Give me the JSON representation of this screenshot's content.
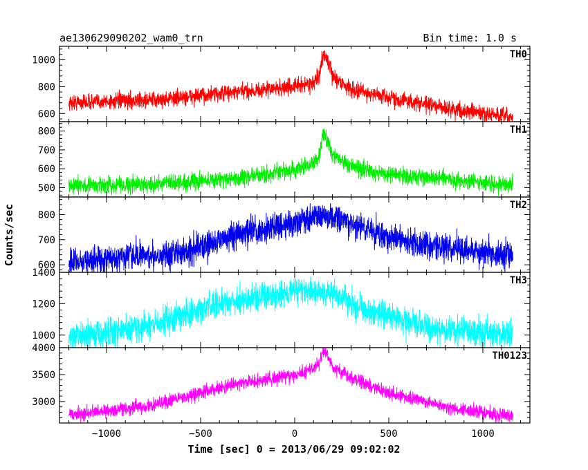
{
  "header": {
    "title": "ae130629090202_wam0_trn",
    "bin_time": "Bin time: 1.0 s"
  },
  "chart_data": {
    "type": "line",
    "xlabel": "Time [sec] 0 = 2013/06/29 09:02:02",
    "ylabel": "Counts/sec",
    "xlim": [
      -1250,
      1250
    ],
    "xticks": [
      -1000,
      -500,
      0,
      500,
      1000
    ],
    "x_range": [
      -1200,
      1160
    ],
    "panels": [
      {
        "name": "TH0",
        "color": "#ff0000",
        "ylim": [
          540,
          1100
        ],
        "yticks": [
          600,
          800,
          1000
        ],
        "profile": [
          [
            -1200,
            680
          ],
          [
            -700,
            705
          ],
          [
            -300,
            760
          ],
          [
            0,
            800
          ],
          [
            100,
            830
          ],
          [
            130,
            870
          ],
          [
            150,
            1040
          ],
          [
            175,
            1000
          ],
          [
            200,
            880
          ],
          [
            300,
            780
          ],
          [
            500,
            720
          ],
          [
            800,
            640
          ],
          [
            1000,
            600
          ],
          [
            1160,
            570
          ]
        ],
        "noise": 30
      },
      {
        "name": "TH1",
        "color": "#00ee00",
        "ylim": [
          450,
          850
        ],
        "yticks": [
          500,
          600,
          700,
          800
        ],
        "profile": [
          [
            -1200,
            510
          ],
          [
            -700,
            520
          ],
          [
            -300,
            550
          ],
          [
            0,
            590
          ],
          [
            100,
            630
          ],
          [
            130,
            670
          ],
          [
            150,
            780
          ],
          [
            175,
            750
          ],
          [
            200,
            680
          ],
          [
            300,
            610
          ],
          [
            500,
            570
          ],
          [
            800,
            545
          ],
          [
            1000,
            525
          ],
          [
            1160,
            515
          ]
        ],
        "noise": 22
      },
      {
        "name": "TH2",
        "color": "#0000ee",
        "ylim": [
          570,
          870
        ],
        "yticks": [
          600,
          700,
          800
        ],
        "profile": [
          [
            -1200,
            610
          ],
          [
            -600,
            650
          ],
          [
            -300,
            720
          ],
          [
            0,
            770
          ],
          [
            150,
            800
          ],
          [
            300,
            760
          ],
          [
            600,
            690
          ],
          [
            1000,
            650
          ],
          [
            1160,
            640
          ]
        ],
        "noise": 28
      },
      {
        "name": "TH3",
        "color": "#00ffff",
        "ylim": [
          920,
          1400
        ],
        "yticks": [
          1000,
          1200,
          1400
        ],
        "profile": [
          [
            -1200,
            990
          ],
          [
            -800,
            1050
          ],
          [
            -400,
            1200
          ],
          [
            0,
            1280
          ],
          [
            200,
            1270
          ],
          [
            400,
            1150
          ],
          [
            700,
            1050
          ],
          [
            1160,
            1000
          ]
        ],
        "noise": 45
      },
      {
        "name": "TH0123",
        "color": "#ff00ff",
        "ylim": [
          2600,
          4000
        ],
        "yticks": [
          3000,
          3500,
          4000
        ],
        "profile": [
          [
            -1200,
            2750
          ],
          [
            -800,
            2900
          ],
          [
            -400,
            3250
          ],
          [
            0,
            3500
          ],
          [
            100,
            3600
          ],
          [
            130,
            3700
          ],
          [
            150,
            3950
          ],
          [
            175,
            3850
          ],
          [
            200,
            3650
          ],
          [
            300,
            3450
          ],
          [
            500,
            3150
          ],
          [
            800,
            2900
          ],
          [
            1160,
            2720
          ]
        ],
        "noise": 65
      }
    ]
  }
}
